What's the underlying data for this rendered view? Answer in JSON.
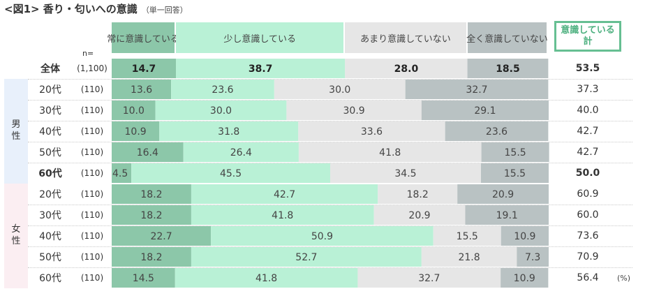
{
  "title": "<図1> 香り・匂いへの意識",
  "title_note": "（単一回答）",
  "n_label": "n=",
  "unit_label": "(%)",
  "total_header": [
    "意識している",
    "計"
  ],
  "colors": [
    "#8cc7a9",
    "#b9f1d6",
    "#e6e6e6",
    "#b9c2c3"
  ],
  "groups": [
    {
      "label": [
        "男",
        "性"
      ],
      "band_color": "#e8f0fb"
    },
    {
      "label": [
        "女",
        "性"
      ],
      "band_color": "#fbeef2"
    }
  ],
  "chart_data": {
    "type": "bar",
    "orientation": "horizontal",
    "stacked": true,
    "title": "<図1> 香り・匂いへの意識",
    "xlim": [
      0,
      100
    ],
    "legend": "top",
    "series": [
      {
        "name": "常に意識している",
        "values": [
          14.7,
          13.6,
          10.0,
          10.9,
          16.4,
          4.5,
          18.2,
          18.2,
          22.7,
          18.2,
          14.5
        ]
      },
      {
        "name": "少し意識している",
        "values": [
          38.7,
          23.6,
          30.0,
          31.8,
          26.4,
          45.5,
          42.7,
          41.8,
          50.9,
          52.7,
          41.8
        ]
      },
      {
        "name": "あまり意識していない",
        "values": [
          28.0,
          30.0,
          30.9,
          33.6,
          41.8,
          34.5,
          18.2,
          20.9,
          15.5,
          21.8,
          32.7
        ]
      },
      {
        "name": "全く意識していない",
        "values": [
          18.5,
          32.7,
          29.1,
          23.6,
          15.5,
          15.5,
          20.9,
          19.1,
          10.9,
          7.3,
          10.9
        ]
      }
    ],
    "rows": [
      {
        "label": "全体",
        "n": "(1,100)",
        "total": "53.5",
        "group": null,
        "bold": true
      },
      {
        "label": "20代",
        "n": "(110)",
        "total": "37.3",
        "group": 0,
        "bold": false
      },
      {
        "label": "30代",
        "n": "(110)",
        "total": "40.0",
        "group": 0,
        "bold": false
      },
      {
        "label": "40代",
        "n": "(110)",
        "total": "42.7",
        "group": 0,
        "bold": false
      },
      {
        "label": "50代",
        "n": "(110)",
        "total": "42.7",
        "group": 0,
        "bold": false
      },
      {
        "label": "60代",
        "n": "(110)",
        "total": "50.0",
        "group": 0,
        "bold": true
      },
      {
        "label": "20代",
        "n": "(110)",
        "total": "60.9",
        "group": 1,
        "bold": false
      },
      {
        "label": "30代",
        "n": "(110)",
        "total": "60.0",
        "group": 1,
        "bold": false
      },
      {
        "label": "40代",
        "n": "(110)",
        "total": "73.6",
        "group": 1,
        "bold": false
      },
      {
        "label": "50代",
        "n": "(110)",
        "total": "70.9",
        "group": 1,
        "bold": false
      },
      {
        "label": "60代",
        "n": "(110)",
        "total": "56.4",
        "group": 1,
        "bold": false
      }
    ]
  }
}
